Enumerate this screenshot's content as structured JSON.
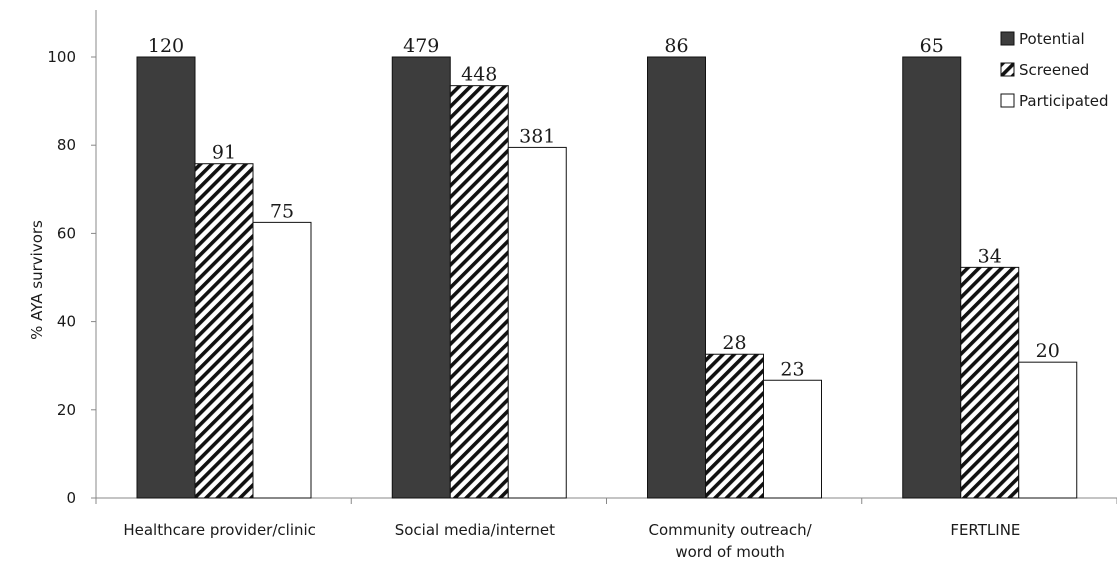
{
  "chart_data": {
    "type": "bar",
    "ylabel": "% AYA survivors",
    "ylim": [
      0,
      100
    ],
    "yticks": [
      "0",
      "20",
      "40",
      "60",
      "80",
      "100"
    ],
    "categories": [
      [
        "Healthcare provider/clinic"
      ],
      [
        "Social media/internet"
      ],
      [
        "Community outreach/",
        "word of mouth"
      ],
      [
        "FERTLINE"
      ]
    ],
    "series": [
      {
        "name": "Potential",
        "style": "solid",
        "values": [
          100,
          100,
          100,
          100
        ],
        "labels": [
          "120",
          "479",
          "86",
          "65"
        ]
      },
      {
        "name": "Screened",
        "style": "hatch",
        "values": [
          75.8,
          93.5,
          32.6,
          52.3
        ],
        "labels": [
          "91",
          "448",
          "28",
          "34"
        ]
      },
      {
        "name": "Participated",
        "style": "open",
        "values": [
          62.5,
          79.5,
          26.7,
          30.8
        ],
        "labels": [
          "75",
          "381",
          "23",
          "20"
        ]
      }
    ],
    "legend_position": "top-right",
    "grid": false,
    "colors": {
      "solid": "#3d3d3d",
      "hatch_line": "#111111",
      "open": "#ffffff",
      "stroke": "#111111",
      "axis": "#888888"
    }
  }
}
